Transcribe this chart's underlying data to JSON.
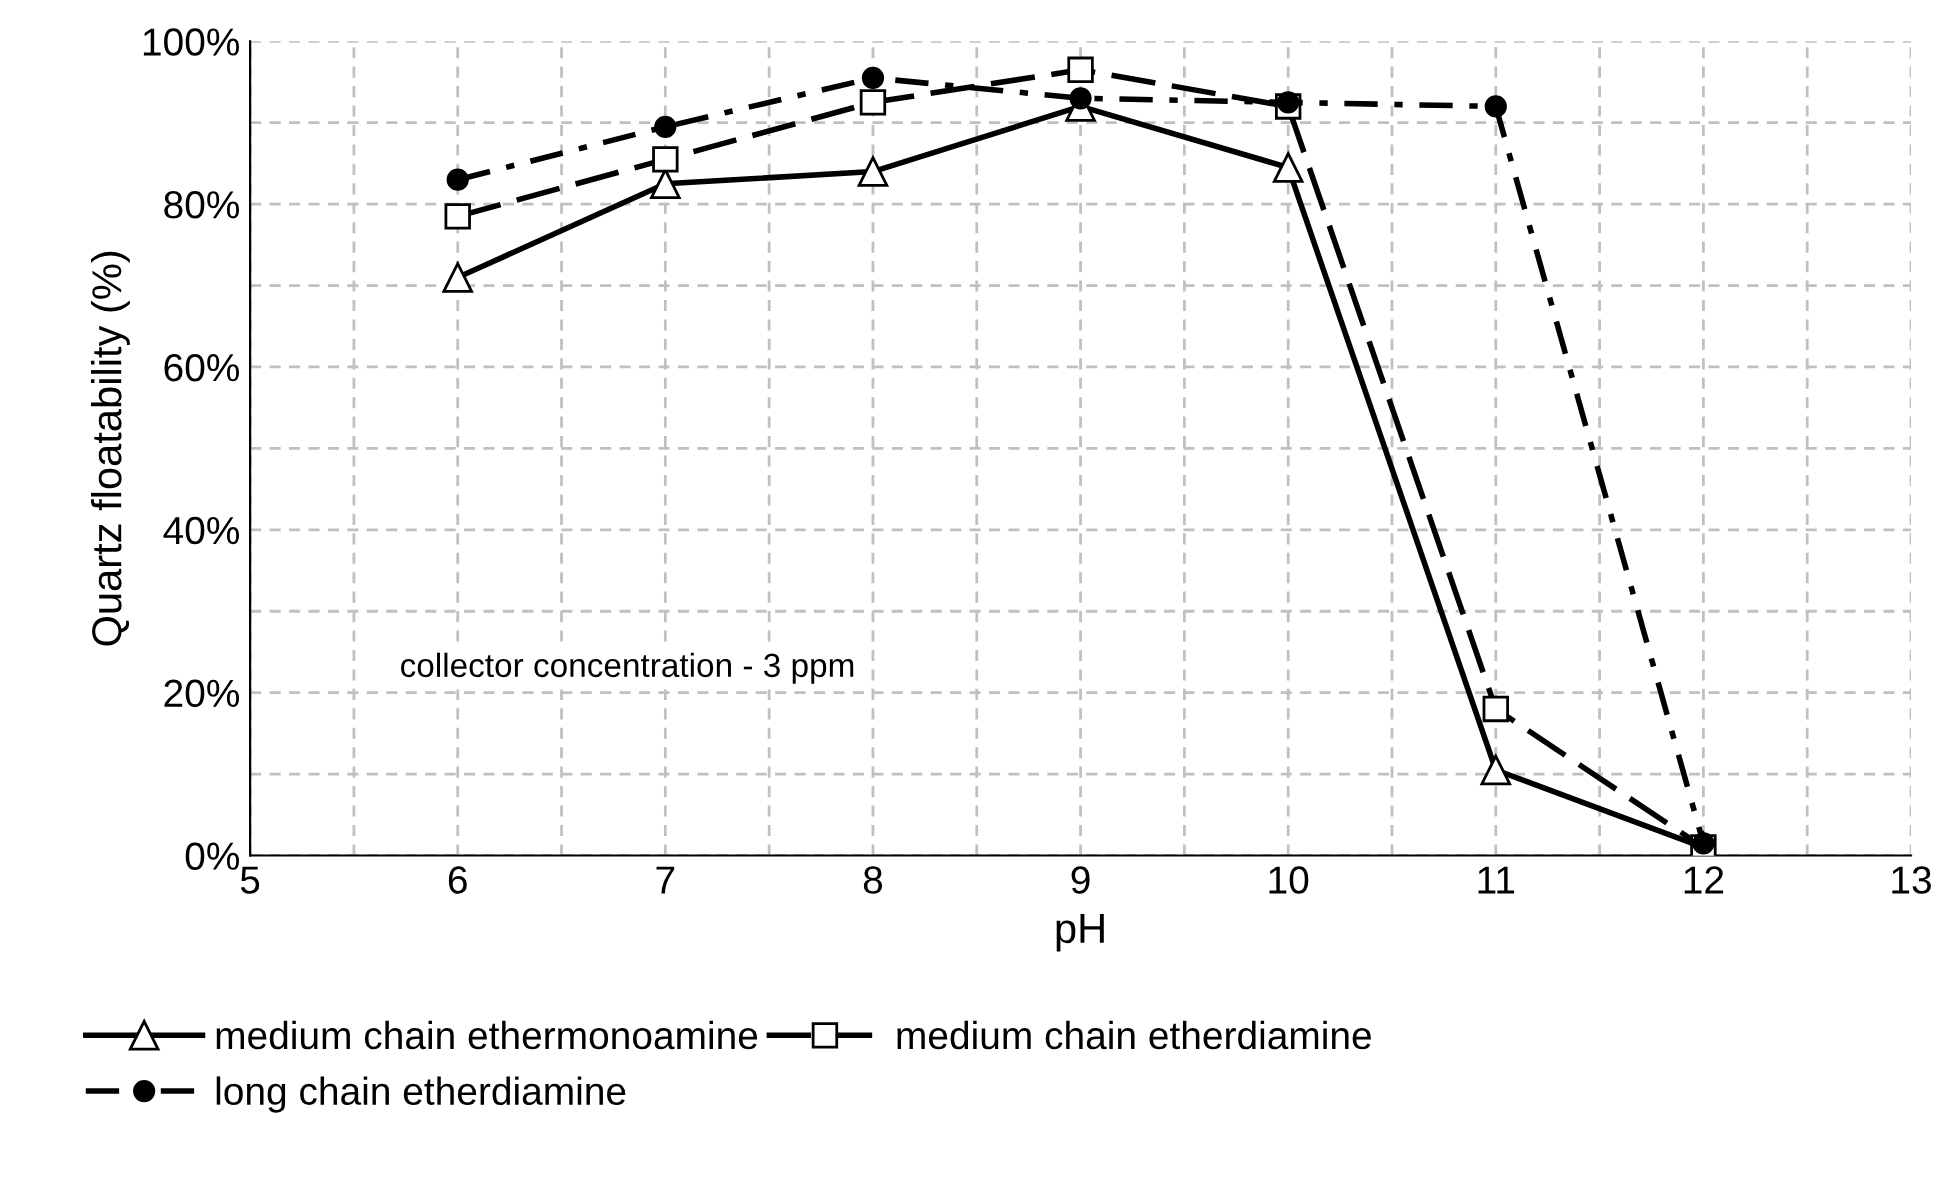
{
  "chart_data": {
    "type": "line",
    "xlabel": "pH",
    "ylabel": "Quartz floatability (%)",
    "x": [
      6,
      7,
      8,
      9,
      10,
      11,
      12
    ],
    "series": [
      {
        "name": "medium chain ethermonoamine",
        "color": "#000000",
        "marker": "triangle",
        "line_style": "solid",
        "values": [
          71,
          82.5,
          84,
          92,
          84.5,
          10.5,
          1
        ]
      },
      {
        "name": "medium chain etherdiamine",
        "color": "#000000",
        "marker": "square",
        "line_style": "dashed",
        "values": [
          78.5,
          85.5,
          92.5,
          96.5,
          92,
          18,
          1
        ]
      },
      {
        "name": "long chain etherdiamine",
        "color": "#000000",
        "marker": "circle",
        "line_style": "dashdot",
        "values": [
          83,
          89.5,
          95.5,
          93,
          92.5,
          92,
          1.5
        ]
      }
    ],
    "xlim": [
      5,
      13
    ],
    "xticks": [
      5,
      {
        "value": 5.5,
        "label": null
      },
      6,
      {
        "value": 6.5,
        "label": null
      },
      7,
      {
        "value": 7.5,
        "label": null
      },
      8,
      {
        "value": 8.5,
        "label": null
      },
      9,
      {
        "value": 9.5,
        "label": null
      },
      10,
      {
        "value": 10.5,
        "label": null
      },
      11,
      {
        "value": 11.5,
        "label": null
      },
      12,
      {
        "value": 12.5,
        "label": null
      },
      13
    ],
    "ylim": [
      0,
      100
    ],
    "yticks": [
      {
        "value": 0,
        "label": "0%"
      },
      {
        "value": 10,
        "label": null
      },
      {
        "value": 20,
        "label": "20%"
      },
      {
        "value": 30,
        "label": null
      },
      {
        "value": 40,
        "label": "40%"
      },
      {
        "value": 50,
        "label": null
      },
      {
        "value": 60,
        "label": "60%"
      },
      {
        "value": 70,
        "label": null
      },
      {
        "value": 80,
        "label": "80%"
      },
      {
        "value": 90,
        "label": null
      },
      {
        "value": 100,
        "label": "100%"
      }
    ],
    "grid": true,
    "legend": "bottom",
    "annotations": [
      "collector concentration - 3 ppm"
    ]
  }
}
